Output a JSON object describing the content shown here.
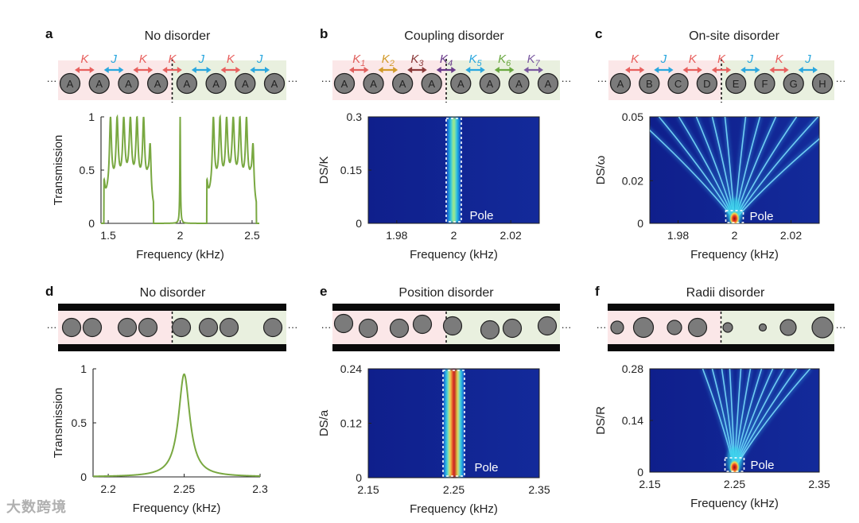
{
  "watermark": "大数跨境",
  "colors": {
    "green_curve": "#79a841",
    "coupling_red": "#e8605e",
    "coupling_blue": "#2aa7de",
    "pink_bg": "#fbe7e8",
    "green_bg": "#e9f0df",
    "site_gray": "#7b7b7b"
  },
  "panels": {
    "a": {
      "letter": "a",
      "title": "No disorder",
      "sites": [
        "A",
        "A",
        "A",
        "A",
        "A",
        "A",
        "A",
        "A"
      ],
      "couplings": [
        "K",
        "J",
        "K",
        "K",
        "J",
        "K",
        "J"
      ]
    },
    "b": {
      "letter": "b",
      "title": "Coupling disorder",
      "sites": [
        "A",
        "A",
        "A",
        "A",
        "A",
        "A",
        "A",
        "A"
      ],
      "couplings": [
        "K",
        "K",
        "K",
        "K",
        "K",
        "K",
        "K"
      ],
      "coupling_subs": [
        "1",
        "2",
        "3",
        "4",
        "5",
        "6",
        "7"
      ]
    },
    "c": {
      "letter": "c",
      "title": "On-site disorder",
      "sites": [
        "A",
        "B",
        "C",
        "D",
        "E",
        "F",
        "G",
        "H"
      ],
      "couplings": [
        "K",
        "J",
        "K",
        "K",
        "J",
        "K",
        "J"
      ]
    },
    "d": {
      "letter": "d",
      "title": "No disorder"
    },
    "e": {
      "letter": "e",
      "title": "Position disorder"
    },
    "f": {
      "letter": "f",
      "title": "Radii disorder"
    }
  },
  "ellipsis": "···",
  "pole_label": "Pole",
  "chart_data": [
    {
      "id": "a",
      "type": "line",
      "xlabel": "Frequency (kHz)",
      "ylabel": "Transmission",
      "xlim": [
        1.45,
        2.55
      ],
      "ylim": [
        0,
        1
      ],
      "xticks": [
        "1.5",
        "2",
        "2.5"
      ],
      "yticks": [
        "0",
        "0.5",
        "1"
      ],
      "description_series": "Transmission spectrum with two pass bands (1.5–1.8 kHz and 2.2–2.5 kHz, peaks reaching 1) and a narrow transmission peak at 2 kHz inside a gap"
    },
    {
      "id": "b",
      "type": "heatmap",
      "xlabel": "Frequency (kHz)",
      "ylabel": "DS/K",
      "xlim": [
        1.97,
        2.03
      ],
      "ylim": [
        0,
        0.3
      ],
      "xticks": [
        "1.98",
        "2",
        "2.02"
      ],
      "yticks": [
        "0",
        "0.15",
        "0.3"
      ],
      "feature": "vertical bright line pinned at 2 kHz across all DS values",
      "annotation": "Pole"
    },
    {
      "id": "c",
      "type": "heatmap",
      "xlabel": "Frequency (kHz)",
      "ylabel": "DS/ω",
      "xlim": [
        1.97,
        2.03
      ],
      "ylim": [
        0,
        0.05
      ],
      "xticks": [
        "1.98",
        "2",
        "2.02"
      ],
      "yticks": [
        "0",
        "0.02",
        "0.05"
      ],
      "feature": "fan of bright lines spreading from 2 kHz at DS=0",
      "annotation": "Pole"
    },
    {
      "id": "d",
      "type": "line",
      "xlabel": "Frequency (kHz)",
      "ylabel": "Transmission",
      "xlim": [
        2.19,
        2.3
      ],
      "ylim": [
        0,
        1
      ],
      "xticks": [
        "2.2",
        "2.25",
        "2.3"
      ],
      "yticks": [
        "0",
        "0.5",
        "1"
      ],
      "peak": {
        "x": 2.25,
        "y": 0.95
      }
    },
    {
      "id": "e",
      "type": "heatmap",
      "xlabel": "Frequency (kHz)",
      "ylabel": "DS/a",
      "xlim": [
        2.15,
        2.35
      ],
      "ylim": [
        0,
        0.24
      ],
      "xticks": [
        "2.15",
        "2.25",
        "2.35"
      ],
      "yticks": [
        "0",
        "0.12",
        "0.24"
      ],
      "feature": "vertical bright band pinned at 2.25 kHz",
      "annotation": "Pole"
    },
    {
      "id": "f",
      "type": "heatmap",
      "xlabel": "Frequency (kHz)",
      "ylabel": "DS/R",
      "xlim": [
        2.15,
        2.35
      ],
      "ylim": [
        0,
        0.28
      ],
      "xticks": [
        "2.15",
        "2.25",
        "2.35"
      ],
      "yticks": [
        "0",
        "0.14",
        "0.28"
      ],
      "feature": "fan of bright lines spreading from 2.25 kHz at DS=0",
      "annotation": "Pole"
    }
  ]
}
